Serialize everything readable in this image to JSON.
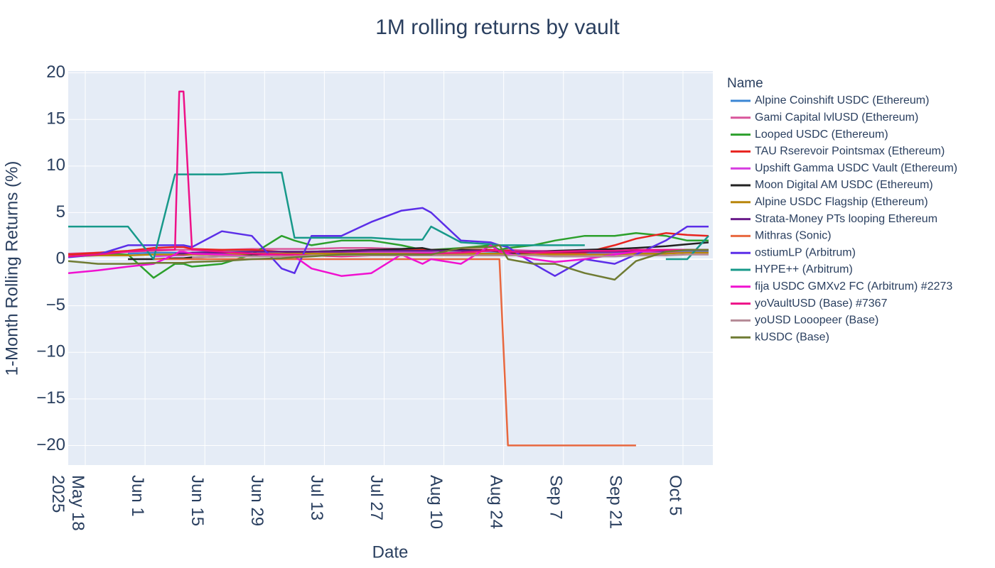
{
  "chart_data": {
    "type": "line",
    "title": "1M rolling returns by vault",
    "x_label": "Date",
    "y_label": "1-Month Rolling Returns (%)",
    "legend_title": "Name",
    "grid": true,
    "legend_position": "right",
    "x": [
      "2025-05-14",
      "2025-05-21",
      "2025-05-28",
      "2025-06-03",
      "2025-06-08",
      "2025-06-09",
      "2025-06-10",
      "2025-06-12",
      "2025-06-19",
      "2025-06-26",
      "2025-07-03",
      "2025-07-06",
      "2025-07-10",
      "2025-07-17",
      "2025-07-24",
      "2025-07-31",
      "2025-08-05",
      "2025-08-07",
      "2025-08-14",
      "2025-08-21",
      "2025-08-23",
      "2025-08-25",
      "2025-08-31",
      "2025-09-05",
      "2025-09-12",
      "2025-09-19",
      "2025-09-24",
      "2025-10-01",
      "2025-10-06",
      "2025-10-11"
    ],
    "xlim": [
      "2025-05-14",
      "2025-10-12"
    ],
    "xticks": [
      {
        "value": "2025-05-18",
        "label": "May 18\n2025"
      },
      {
        "value": "2025-06-01",
        "label": "Jun 1"
      },
      {
        "value": "2025-06-15",
        "label": "Jun 15"
      },
      {
        "value": "2025-06-29",
        "label": "Jun 29"
      },
      {
        "value": "2025-07-13",
        "label": "Jul 13"
      },
      {
        "value": "2025-07-27",
        "label": "Jul 27"
      },
      {
        "value": "2025-08-10",
        "label": "Aug 10"
      },
      {
        "value": "2025-08-24",
        "label": "Aug 24"
      },
      {
        "value": "2025-09-07",
        "label": "Sep 7"
      },
      {
        "value": "2025-09-21",
        "label": "Sep 21"
      },
      {
        "value": "2025-10-05",
        "label": "Oct 5"
      }
    ],
    "ylim": [
      -22.1,
      20.2
    ],
    "yticks": [
      {
        "value": -20,
        "label": "−20"
      },
      {
        "value": -15,
        "label": "−15"
      },
      {
        "value": -10,
        "label": "−10"
      },
      {
        "value": -5,
        "label": "−5"
      },
      0,
      5,
      10,
      15,
      20
    ],
    "series": [
      {
        "name": "Alpine Coinshift USDC (Ethereum)",
        "color": "#3a86d4",
        "values": [
          null,
          null,
          0.6,
          0.7,
          0.7,
          0.7,
          0.7,
          0.7,
          0.8,
          0.8,
          0.8,
          0.8,
          0.8,
          0.9,
          0.9,
          0.9,
          0.9,
          0.9,
          0.9,
          0.8,
          0.8,
          0.8,
          0.8,
          0.7,
          0.7,
          0.7,
          0.8,
          0.8,
          0.9,
          0.9
        ]
      },
      {
        "name": "Gami Capital lvlUSD (Ethereum)",
        "color": "#d9559b",
        "values": [
          0.6,
          0.7,
          0.8,
          0.9,
          1.0,
          1.0,
          1.0,
          1.0,
          1.0,
          1.1,
          1.1,
          1.1,
          1.1,
          1.2,
          1.2,
          1.1,
          1.1,
          1.0,
          1.0,
          1.0,
          1.0,
          1.0,
          0.9,
          0.9,
          0.8,
          0.8,
          0.8,
          0.9,
          1.0,
          1.0
        ]
      },
      {
        "name": "Looped USDC (Ethereum)",
        "color": "#2ca02c",
        "values": [
          0.5,
          0.6,
          0.5,
          -2.0,
          -0.5,
          -0.5,
          -0.5,
          -0.8,
          -0.5,
          0.5,
          2.5,
          2.0,
          1.5,
          2.0,
          2.0,
          1.5,
          1.0,
          1.0,
          1.2,
          1.5,
          1.0,
          1.2,
          1.5,
          2.0,
          2.5,
          2.5,
          2.8,
          2.5,
          2.0,
          2.0
        ]
      },
      {
        "name": "TAU Rserevoir Pointsmax (Ethereum)",
        "color": "#e8231f",
        "values": [
          0.5,
          0.7,
          0.9,
          1.2,
          1.3,
          1.3,
          1.3,
          1.1,
          1.0,
          1.0,
          0.8,
          0.8,
          0.8,
          0.9,
          1.0,
          1.0,
          1.0,
          1.0,
          1.0,
          1.0,
          0.9,
          0.9,
          0.7,
          0.6,
          0.7,
          1.5,
          2.2,
          2.8,
          2.6,
          2.5
        ]
      },
      {
        "name": "Upshift Gamma USDC Vault (Ethereum)",
        "color": "#d63be0",
        "values": [
          null,
          null,
          null,
          0.3,
          0.4,
          0.4,
          0.4,
          0.5,
          0.5,
          0.6,
          0.6,
          0.6,
          0.6,
          0.7,
          0.7,
          0.7,
          0.7,
          0.7,
          0.6,
          0.6,
          0.6,
          0.6,
          0.5,
          0.5,
          0.5,
          0.6,
          0.6,
          0.7,
          0.7,
          0.7
        ]
      },
      {
        "name": "Moon Digital AM USDC (Ethereum)",
        "color": "#222222",
        "values": [
          null,
          null,
          0.0,
          0.0,
          0.1,
          0.1,
          0.1,
          0.2,
          0.3,
          0.5,
          0.6,
          0.7,
          0.8,
          0.9,
          1.0,
          1.1,
          1.2,
          1.0,
          1.0,
          0.9,
          0.8,
          0.6,
          0.7,
          0.9,
          1.0,
          1.1,
          1.2,
          1.4,
          1.6,
          1.8
        ]
      },
      {
        "name": "Alpine USDC Flagship (Ethereum)",
        "color": "#b8860b",
        "values": [
          0.3,
          0.4,
          0.4,
          0.5,
          0.5,
          0.5,
          0.5,
          0.5,
          0.5,
          0.6,
          0.6,
          0.6,
          0.6,
          0.6,
          0.6,
          0.6,
          0.6,
          0.6,
          0.6,
          0.6,
          0.6,
          0.5,
          0.5,
          0.5,
          0.5,
          0.5,
          0.6,
          0.6,
          0.7,
          0.7
        ]
      },
      {
        "name": "Strata-Money PTs looping Ethereum",
        "color": "#6a1b8a",
        "values": [
          null,
          null,
          null,
          null,
          0.6,
          0.6,
          0.6,
          0.7,
          0.7,
          0.8,
          0.8,
          0.8,
          0.8,
          0.8,
          0.9,
          0.9,
          0.9,
          0.9,
          0.9,
          0.9,
          0.9,
          0.8,
          0.8,
          0.8,
          0.8,
          0.8,
          0.9,
          0.9,
          1.0,
          1.0
        ]
      },
      {
        "name": "Mithras (Sonic)",
        "color": "#e8683f",
        "values": [
          null,
          null,
          null,
          0.0,
          0.0,
          0.0,
          0.0,
          0.0,
          0.0,
          0.0,
          0.0,
          0.0,
          0.0,
          0.0,
          0.0,
          0.0,
          0.0,
          0.0,
          0.0,
          0.0,
          0.0,
          -20.0,
          -20.0,
          -20.0,
          -20.0,
          -20.0,
          -20.0,
          null,
          null,
          null
        ]
      },
      {
        "name": "ostiumLP (Arbitrum)",
        "color": "#5b2ee8",
        "values": [
          0.2,
          0.5,
          1.5,
          1.5,
          1.5,
          1.5,
          1.5,
          1.3,
          3.0,
          2.5,
          -1.0,
          -1.5,
          2.5,
          2.5,
          4.0,
          5.2,
          5.5,
          5.0,
          2.0,
          1.8,
          1.5,
          1.3,
          -0.5,
          -1.8,
          0.0,
          -0.5,
          0.5,
          2.0,
          3.5,
          3.5
        ]
      },
      {
        "name": "HYPE++ (Arbitrum)",
        "color": "#17998a",
        "values": [
          3.5,
          3.5,
          3.5,
          0.0,
          9.1,
          9.1,
          9.1,
          9.1,
          9.1,
          9.3,
          9.3,
          2.3,
          2.3,
          2.3,
          2.3,
          2.1,
          2.1,
          3.5,
          1.8,
          1.6,
          1.5,
          1.5,
          1.5,
          1.5,
          1.5,
          null,
          null,
          0.0,
          0.0,
          2.5
        ]
      },
      {
        "name": "fija USDC GMXv2 FC (Arbitrum) #2273",
        "color": "#f010d0",
        "values": [
          -1.5,
          -1.2,
          -0.8,
          -0.5,
          0.5,
          0.8,
          0.8,
          0.6,
          0.5,
          0.3,
          0.5,
          0.3,
          -1.0,
          -1.8,
          -1.5,
          0.5,
          -0.5,
          0.0,
          -0.5,
          1.5,
          0.8,
          0.6,
          0.0,
          -0.3,
          0.0,
          0.5,
          0.8,
          1.0,
          1.0,
          1.0
        ]
      },
      {
        "name": "yoVaultUSD (Base) #7367",
        "color": "#ee1188",
        "values": [
          0.3,
          0.5,
          0.8,
          1.0,
          1.0,
          18.0,
          18.0,
          1.0,
          0.8,
          0.6,
          0.5,
          0.5,
          0.4,
          0.3,
          0.4,
          0.5,
          0.6,
          0.6,
          0.7,
          0.9,
          0.9,
          0.8,
          0.7,
          0.8,
          0.9,
          0.9,
          1.0,
          1.0,
          1.0,
          1.0
        ]
      },
      {
        "name": "yoUSD Looopeer (Base)",
        "color": "#b58a96",
        "values": [
          null,
          null,
          null,
          null,
          null,
          null,
          null,
          0.2,
          0.3,
          0.3,
          0.3,
          0.3,
          0.4,
          0.4,
          0.4,
          0.4,
          0.4,
          0.4,
          0.4,
          0.4,
          0.4,
          0.4,
          0.4,
          0.3,
          0.3,
          0.3,
          0.4,
          0.4,
          0.5,
          0.5
        ]
      },
      {
        "name": "kUSDC (Base)",
        "color": "#6f7b33",
        "values": [
          -0.2,
          -0.5,
          -0.5,
          -0.4,
          -0.4,
          -0.4,
          -0.4,
          -0.3,
          -0.2,
          0.0,
          0.1,
          0.2,
          0.3,
          0.5,
          0.5,
          0.5,
          0.5,
          0.5,
          1.2,
          1.3,
          1.5,
          0.0,
          -0.5,
          -0.5,
          -1.5,
          -2.2,
          -0.2,
          0.8,
          1.0,
          1.0
        ]
      }
    ]
  }
}
